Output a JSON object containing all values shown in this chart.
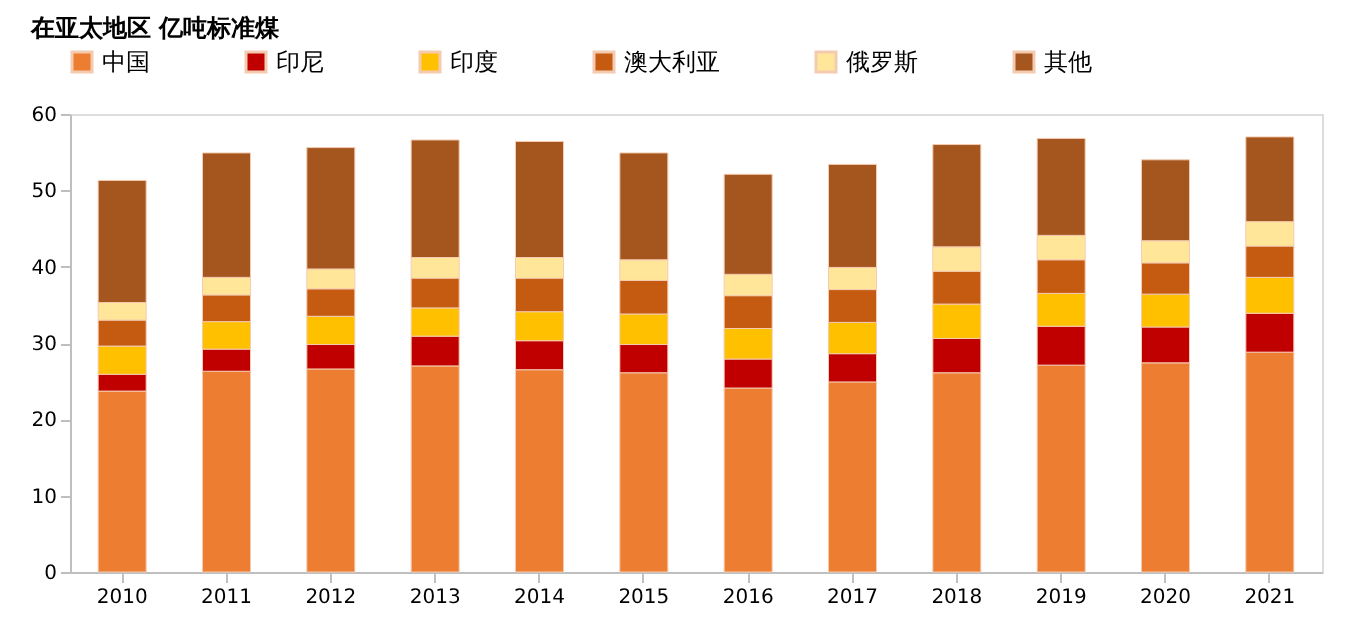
{
  "chart_data": {
    "type": "bar",
    "stacked": true,
    "title": "在亚太地区  亿吨标准煤",
    "categories": [
      "2010",
      "2011",
      "2012",
      "2013",
      "2014",
      "2015",
      "2016",
      "2017",
      "2018",
      "2019",
      "2020",
      "2021"
    ],
    "ylim": [
      0,
      60
    ],
    "yticks": [
      0,
      10,
      20,
      30,
      40,
      50,
      60
    ],
    "grid": false,
    "legend": "top",
    "series": [
      {
        "name": "中国",
        "color": "#ed7d31",
        "values": [
          23.7,
          26.3,
          26.6,
          27.0,
          26.5,
          26.1,
          24.1,
          24.9,
          26.1,
          27.1,
          27.4,
          28.8
        ]
      },
      {
        "name": "印尼",
        "color": "#c00000",
        "values": [
          2.2,
          2.9,
          3.2,
          3.9,
          3.8,
          3.7,
          3.8,
          3.7,
          4.5,
          5.1,
          4.7,
          5.1
        ]
      },
      {
        "name": "印度",
        "color": "#ffc000",
        "values": [
          3.7,
          3.6,
          3.7,
          3.7,
          3.8,
          4.0,
          4.0,
          4.1,
          4.5,
          4.3,
          4.3,
          4.7
        ]
      },
      {
        "name": "澳大利亚",
        "color": "#c55a11",
        "values": [
          3.4,
          3.5,
          3.6,
          3.9,
          4.4,
          4.4,
          4.3,
          4.3,
          4.3,
          4.4,
          4.1,
          4.1
        ]
      },
      {
        "name": "俄罗斯",
        "color": "#ffe699",
        "values": [
          2.3,
          2.3,
          2.6,
          2.7,
          2.7,
          2.7,
          2.8,
          2.9,
          3.2,
          3.2,
          2.9,
          3.2
        ]
      },
      {
        "name": "其他",
        "color": "#a5561f",
        "values": [
          16.0,
          16.3,
          15.9,
          15.4,
          15.2,
          14.0,
          13.1,
          13.5,
          13.4,
          12.7,
          10.6,
          11.1
        ]
      }
    ]
  }
}
